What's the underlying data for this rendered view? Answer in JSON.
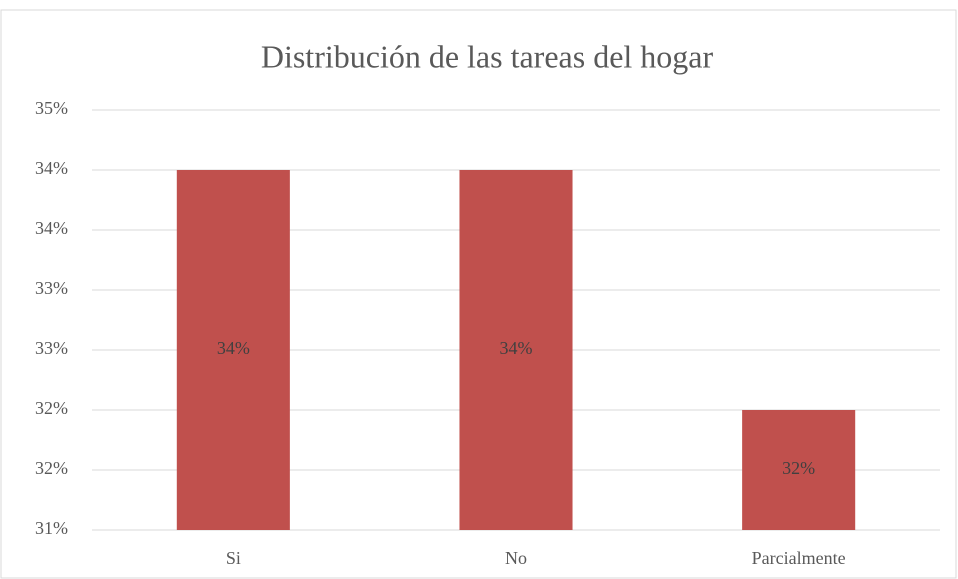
{
  "chart_data": {
    "type": "bar",
    "title": "Distribución de las tareas del hogar",
    "categories": [
      "Si",
      "No",
      "Parcialmente"
    ],
    "values": [
      34,
      34,
      32
    ],
    "value_labels": [
      "34%",
      "34%",
      "32%"
    ],
    "color": "#c0504d",
    "ylim": [
      31,
      34.5
    ],
    "yticks": [
      {
        "value": 31,
        "label": "31%"
      },
      {
        "value": 31.5,
        "label": "32%"
      },
      {
        "value": 32,
        "label": "32%"
      },
      {
        "value": 32.5,
        "label": "33%"
      },
      {
        "value": 33,
        "label": "33%"
      },
      {
        "value": 33.5,
        "label": "34%"
      },
      {
        "value": 34,
        "label": "34%"
      },
      {
        "value": 34.5,
        "label": "35%"
      }
    ],
    "grid": true
  }
}
